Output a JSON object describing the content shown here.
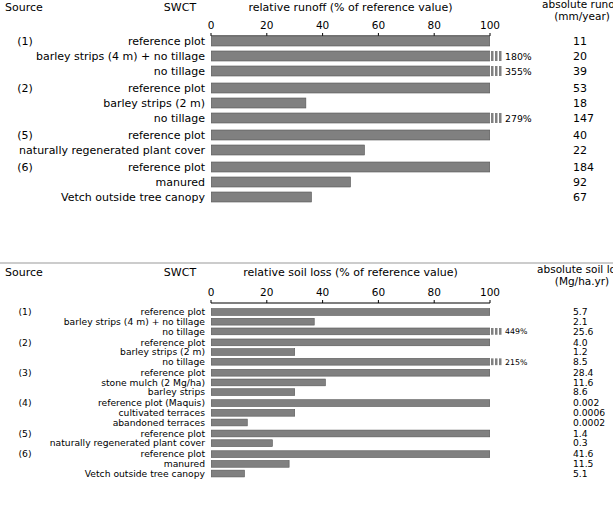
{
  "chart_data": [
    {
      "type": "bar",
      "orientation": "horizontal",
      "title": "relative runoff (% of reference value)",
      "source_header": "Source",
      "category_header": "SWCT",
      "absolute_header": [
        "absolute runoff",
        "(mm/year)"
      ],
      "xlim": [
        0,
        100
      ],
      "xticks": [
        0,
        20,
        40,
        60,
        80,
        100
      ],
      "color": "#808080",
      "groups": [
        {
          "source": "(1)",
          "categories": [
            "reference plot",
            "barley strips (4 m) + no tillage",
            "no tillage"
          ],
          "values": [
            100,
            180,
            355
          ],
          "value_labels": [
            null,
            "180%",
            "355%"
          ],
          "absolute": [
            11,
            20,
            39
          ]
        },
        {
          "source": "(2)",
          "categories": [
            "reference plot",
            "barley strips (2 m)",
            "no tillage"
          ],
          "values": [
            100,
            34,
            279
          ],
          "value_labels": [
            null,
            null,
            "279%"
          ],
          "absolute": [
            53,
            18,
            147
          ]
        },
        {
          "source": "(5)",
          "categories": [
            "reference plot",
            "naturally regenerated plant cover"
          ],
          "values": [
            100,
            55
          ],
          "value_labels": [
            null,
            null
          ],
          "absolute": [
            40,
            22
          ]
        },
        {
          "source": "(6)",
          "categories": [
            "reference plot",
            "manured",
            "Vetch outside tree canopy"
          ],
          "values": [
            100,
            50,
            36
          ],
          "value_labels": [
            null,
            null,
            null
          ],
          "absolute": [
            184,
            92,
            67
          ]
        }
      ]
    },
    {
      "type": "bar",
      "orientation": "horizontal",
      "title": "relative soil loss (% of reference value)",
      "source_header": "Source",
      "category_header": "SWCT",
      "absolute_header": [
        "absolute soil loss",
        "(Mg/ha.yr)"
      ],
      "xlim": [
        0,
        100
      ],
      "xticks": [
        0,
        20,
        40,
        60,
        80,
        100
      ],
      "color": "#808080",
      "groups": [
        {
          "source": "(1)",
          "categories": [
            "reference plot",
            "barley strips (4 m) + no tillage",
            "no tillage"
          ],
          "values": [
            100,
            37,
            449
          ],
          "value_labels": [
            null,
            null,
            "449%"
          ],
          "absolute": [
            5.7,
            2.1,
            25.6
          ]
        },
        {
          "source": "(2)",
          "categories": [
            "reference plot",
            "barley strips (2 m)",
            "no tillage"
          ],
          "values": [
            100,
            30,
            215
          ],
          "value_labels": [
            null,
            null,
            "215%"
          ],
          "absolute": [
            {
              "value": 4,
              "label": "4.0"
            },
            1.2,
            8.5
          ]
        },
        {
          "source": "(3)",
          "categories": [
            "reference plot",
            "stone mulch (2 Mg/ha)",
            "barley strips"
          ],
          "values": [
            100,
            41,
            30
          ],
          "value_labels": [
            null,
            null,
            null
          ],
          "absolute": [
            28.4,
            11.6,
            8.6
          ]
        },
        {
          "source": "(4)",
          "categories": [
            "reference plot (Maquis)",
            "cultivated terraces",
            "abandoned terraces"
          ],
          "values": [
            100,
            30,
            13
          ],
          "value_labels": [
            null,
            null,
            null
          ],
          "absolute": [
            0.002,
            0.0006,
            0.0002
          ]
        },
        {
          "source": "(5)",
          "categories": [
            "reference plot",
            "naturally regenerated plant cover"
          ],
          "values": [
            100,
            22
          ],
          "value_labels": [
            null,
            null
          ],
          "absolute": [
            1.4,
            0.3
          ]
        },
        {
          "source": "(6)",
          "categories": [
            "reference plot",
            "manured",
            "Vetch outside tree canopy"
          ],
          "values": [
            100,
            28,
            12
          ],
          "value_labels": [
            null,
            null,
            null
          ],
          "absolute": [
            41.6,
            11.5,
            5.1
          ]
        }
      ]
    }
  ]
}
